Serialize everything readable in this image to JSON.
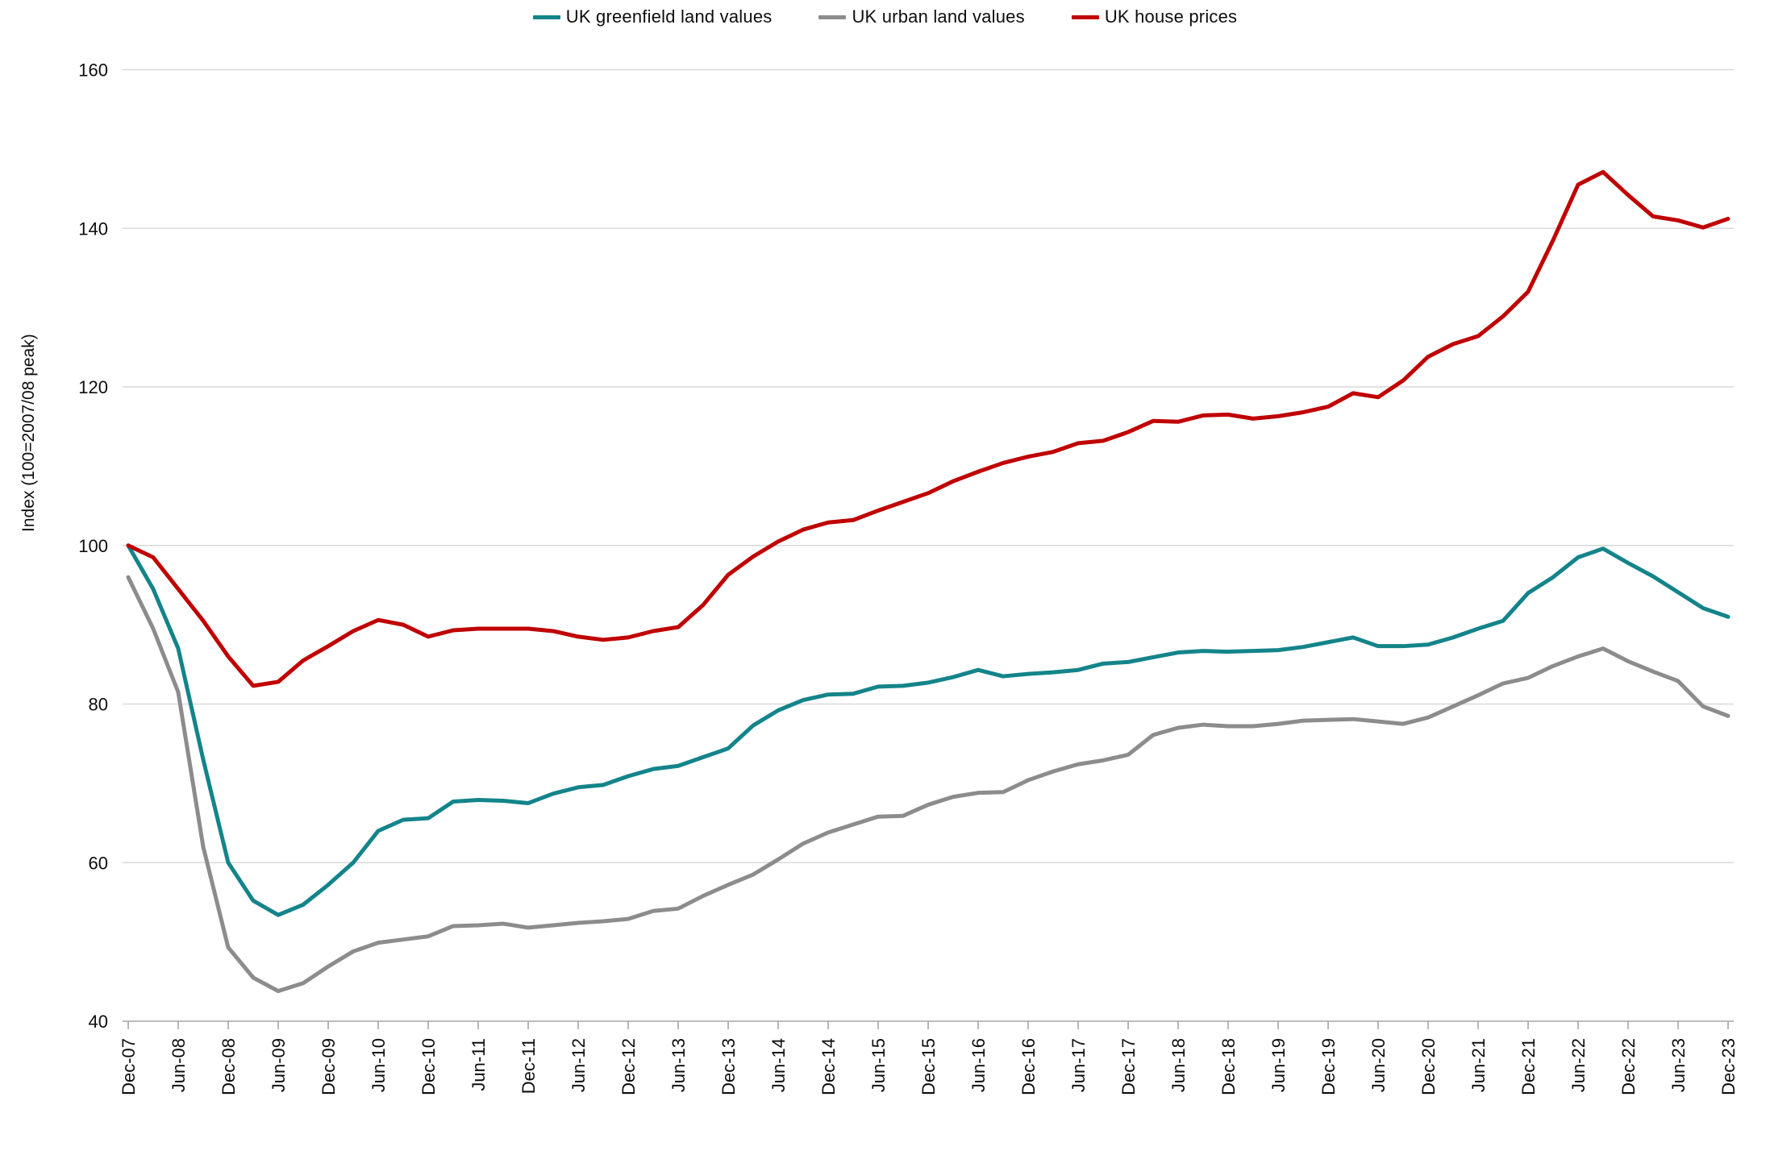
{
  "chart_data": {
    "type": "line",
    "title": "",
    "ylabel": "Index (100=2007/08 peak)",
    "xlabel": "",
    "ylim": [
      40,
      160
    ],
    "y_ticks": [
      40,
      60,
      80,
      100,
      120,
      140,
      160
    ],
    "grid": true,
    "legend_position": "top",
    "x_tick_every": 2,
    "categories": [
      "Dec-07",
      "Mar-08",
      "Jun-08",
      "Sep-08",
      "Dec-08",
      "Mar-09",
      "Jun-09",
      "Sep-09",
      "Dec-09",
      "Mar-10",
      "Jun-10",
      "Sep-10",
      "Dec-10",
      "Mar-11",
      "Jun-11",
      "Sep-11",
      "Dec-11",
      "Mar-12",
      "Jun-12",
      "Sep-12",
      "Dec-12",
      "Mar-13",
      "Jun-13",
      "Sep-13",
      "Dec-13",
      "Mar-14",
      "Jun-14",
      "Sep-14",
      "Dec-14",
      "Mar-15",
      "Jun-15",
      "Sep-15",
      "Dec-15",
      "Mar-16",
      "Jun-16",
      "Sep-16",
      "Dec-16",
      "Mar-17",
      "Jun-17",
      "Sep-17",
      "Dec-17",
      "Mar-18",
      "Jun-18",
      "Sep-18",
      "Dec-18",
      "Mar-19",
      "Jun-19",
      "Sep-19",
      "Dec-19",
      "Mar-20",
      "Jun-20",
      "Sep-20",
      "Dec-20",
      "Mar-21",
      "Jun-21",
      "Sep-21",
      "Dec-21",
      "Mar-22",
      "Jun-22",
      "Sep-22",
      "Dec-22",
      "Mar-23",
      "Jun-23",
      "Sep-23",
      "Dec-23"
    ],
    "series": [
      {
        "name": "UK greenfield land values",
        "color": "#13848a",
        "values": [
          100,
          94.5,
          87,
          73,
          60,
          55.2,
          53.4,
          54.7,
          57.2,
          60,
          64,
          65.4,
          65.6,
          67.7,
          67.9,
          67.8,
          67.5,
          68.7,
          69.5,
          69.8,
          70.9,
          71.8,
          72.2,
          73.3,
          74.4,
          77.3,
          79.2,
          80.5,
          81.2,
          81.3,
          82.2,
          82.3,
          82.7,
          83.4,
          84.3,
          83.5,
          83.8,
          84,
          84.3,
          85.1,
          85.3,
          85.9,
          86.5,
          86.7,
          86.6,
          86.7,
          86.8,
          87.2,
          87.8,
          88.4,
          87.3,
          87.3,
          87.5,
          88.4,
          89.5,
          90.5,
          94,
          96,
          98.5,
          99.6,
          97.8,
          96.1,
          94.1,
          92.1,
          91
        ]
      },
      {
        "name": "UK urban land values",
        "color": "#8c8c8c",
        "values": [
          96,
          89.5,
          81.5,
          62,
          49.3,
          45.5,
          43.8,
          44.8,
          46.9,
          48.8,
          49.9,
          50.3,
          50.7,
          52,
          52.1,
          52.3,
          51.8,
          52.1,
          52.4,
          52.6,
          52.9,
          53.9,
          54.2,
          55.8,
          57.2,
          58.5,
          60.4,
          62.4,
          63.8,
          64.8,
          65.8,
          65.9,
          67.3,
          68.3,
          68.8,
          68.9,
          70.4,
          71.5,
          72.4,
          72.9,
          73.6,
          76.1,
          77,
          77.4,
          77.2,
          77.2,
          77.5,
          77.9,
          78,
          78.1,
          77.8,
          77.5,
          78.3,
          79.7,
          81.1,
          82.6,
          83.3,
          84.8,
          86,
          87,
          85.4,
          84.1,
          82.9,
          79.7,
          78.5
        ]
      },
      {
        "name": "UK house prices",
        "color": "#c00000",
        "values": [
          100,
          98.5,
          94.5,
          90.5,
          86,
          82.3,
          82.8,
          85.5,
          87.3,
          89.2,
          90.6,
          90,
          88.5,
          89.3,
          89.5,
          89.5,
          89.5,
          89.2,
          88.5,
          88.1,
          88.4,
          89.2,
          89.7,
          92.5,
          96.3,
          98.6,
          100.5,
          102,
          102.9,
          103.2,
          104.4,
          105.5,
          106.6,
          108.1,
          109.3,
          110.4,
          111.2,
          111.8,
          112.9,
          113.2,
          114.3,
          115.7,
          115.6,
          116.4,
          116.5,
          116,
          116.3,
          116.8,
          117.5,
          119.2,
          118.7,
          120.8,
          123.8,
          125.4,
          126.4,
          128.9,
          132,
          138.5,
          145.5,
          147.1,
          144.2,
          141.5,
          141,
          140.1,
          141.2
        ]
      }
    ],
    "colors": {
      "gridline": "#d9d9d9",
      "axis": "#a6a6a6",
      "tick": "#a6a6a6",
      "label_text": "#0d0d0d"
    }
  }
}
